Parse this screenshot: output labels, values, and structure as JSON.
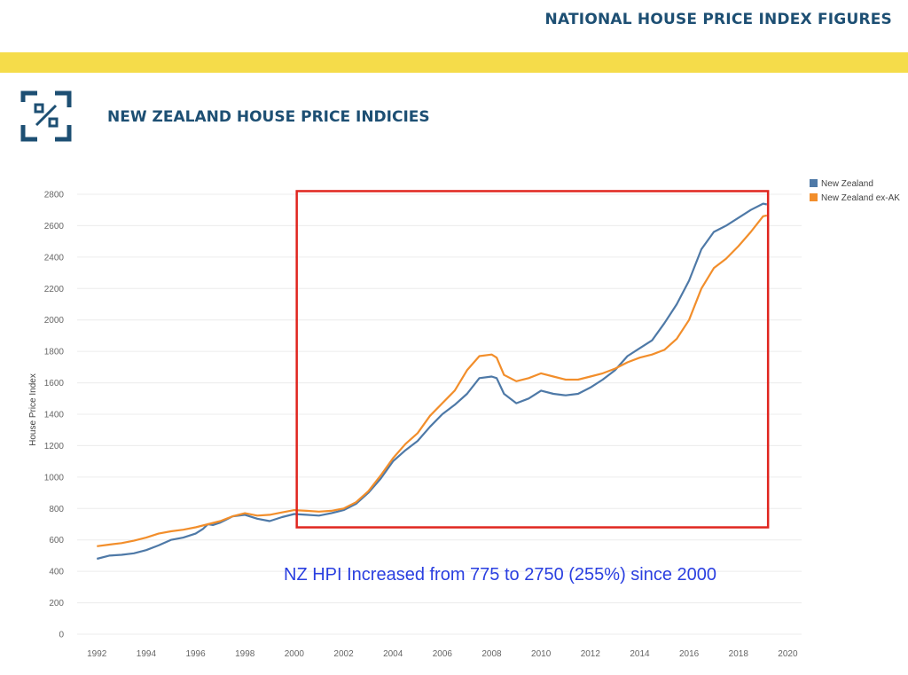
{
  "header": {
    "title": "NATIONAL HOUSE PRICE INDEX FIGURES"
  },
  "section": {
    "title": "NEW ZEALAND HOUSE PRICE INDICIES",
    "icon": "percent-square-icon"
  },
  "colors": {
    "brand": "#1d4f73",
    "band": "#f5dc4a",
    "highlight": "#e0261f",
    "annotation": "#2a3fe0"
  },
  "chart_data": {
    "type": "line",
    "ylabel": "House Price Index",
    "xlabel": "",
    "xlim": [
      1991.2,
      2020.2
    ],
    "ylim": [
      0,
      2800
    ],
    "yticks": [
      0,
      200,
      400,
      600,
      800,
      1000,
      1200,
      1400,
      1600,
      1800,
      2000,
      2200,
      2400,
      2600,
      2800
    ],
    "xticks": [
      1992,
      1994,
      1996,
      1998,
      2000,
      2002,
      2004,
      2006,
      2008,
      2010,
      2012,
      2014,
      2016,
      2018,
      2020
    ],
    "grid": true,
    "legend_position": "top-right",
    "series": [
      {
        "name": "New Zealand",
        "color": "#4e79a7",
        "points": [
          [
            1992.0,
            480
          ],
          [
            1992.5,
            500
          ],
          [
            1993.0,
            505
          ],
          [
            1993.5,
            515
          ],
          [
            1994.0,
            535
          ],
          [
            1994.5,
            565
          ],
          [
            1995.0,
            600
          ],
          [
            1995.5,
            615
          ],
          [
            1996.0,
            640
          ],
          [
            1996.3,
            670
          ],
          [
            1996.5,
            700
          ],
          [
            1996.7,
            695
          ],
          [
            1997.0,
            710
          ],
          [
            1997.5,
            750
          ],
          [
            1998.0,
            760
          ],
          [
            1998.5,
            735
          ],
          [
            1999.0,
            720
          ],
          [
            1999.5,
            745
          ],
          [
            2000.0,
            765
          ],
          [
            2000.5,
            760
          ],
          [
            2001.0,
            755
          ],
          [
            2001.5,
            770
          ],
          [
            2002.0,
            790
          ],
          [
            2002.5,
            830
          ],
          [
            2003.0,
            900
          ],
          [
            2003.5,
            990
          ],
          [
            2004.0,
            1100
          ],
          [
            2004.5,
            1170
          ],
          [
            2005.0,
            1230
          ],
          [
            2005.5,
            1320
          ],
          [
            2006.0,
            1400
          ],
          [
            2006.5,
            1460
          ],
          [
            2007.0,
            1530
          ],
          [
            2007.5,
            1630
          ],
          [
            2008.0,
            1640
          ],
          [
            2008.2,
            1630
          ],
          [
            2008.5,
            1530
          ],
          [
            2009.0,
            1470
          ],
          [
            2009.5,
            1500
          ],
          [
            2010.0,
            1550
          ],
          [
            2010.5,
            1530
          ],
          [
            2011.0,
            1520
          ],
          [
            2011.5,
            1530
          ],
          [
            2012.0,
            1570
          ],
          [
            2012.5,
            1620
          ],
          [
            2013.0,
            1680
          ],
          [
            2013.5,
            1770
          ],
          [
            2014.0,
            1820
          ],
          [
            2014.5,
            1870
          ],
          [
            2015.0,
            1980
          ],
          [
            2015.5,
            2100
          ],
          [
            2016.0,
            2250
          ],
          [
            2016.5,
            2450
          ],
          [
            2017.0,
            2560
          ],
          [
            2017.5,
            2600
          ],
          [
            2018.0,
            2650
          ],
          [
            2018.5,
            2700
          ],
          [
            2019.0,
            2740
          ],
          [
            2019.15,
            2735
          ]
        ]
      },
      {
        "name": "New Zealand ex-AK",
        "color": "#f28e2b",
        "points": [
          [
            1992.0,
            560
          ],
          [
            1992.5,
            570
          ],
          [
            1993.0,
            580
          ],
          [
            1993.5,
            595
          ],
          [
            1994.0,
            615
          ],
          [
            1994.5,
            640
          ],
          [
            1995.0,
            655
          ],
          [
            1995.5,
            665
          ],
          [
            1996.0,
            680
          ],
          [
            1996.5,
            700
          ],
          [
            1997.0,
            720
          ],
          [
            1997.5,
            750
          ],
          [
            1998.0,
            770
          ],
          [
            1998.5,
            755
          ],
          [
            1999.0,
            760
          ],
          [
            1999.5,
            775
          ],
          [
            2000.0,
            790
          ],
          [
            2000.5,
            785
          ],
          [
            2001.0,
            780
          ],
          [
            2001.5,
            785
          ],
          [
            2002.0,
            800
          ],
          [
            2002.5,
            840
          ],
          [
            2003.0,
            910
          ],
          [
            2003.5,
            1010
          ],
          [
            2004.0,
            1120
          ],
          [
            2004.5,
            1210
          ],
          [
            2005.0,
            1280
          ],
          [
            2005.5,
            1390
          ],
          [
            2006.0,
            1470
          ],
          [
            2006.5,
            1550
          ],
          [
            2007.0,
            1680
          ],
          [
            2007.5,
            1770
          ],
          [
            2008.0,
            1780
          ],
          [
            2008.2,
            1760
          ],
          [
            2008.5,
            1650
          ],
          [
            2009.0,
            1610
          ],
          [
            2009.5,
            1630
          ],
          [
            2010.0,
            1660
          ],
          [
            2010.5,
            1640
          ],
          [
            2011.0,
            1620
          ],
          [
            2011.5,
            1620
          ],
          [
            2012.0,
            1640
          ],
          [
            2012.5,
            1660
          ],
          [
            2013.0,
            1690
          ],
          [
            2013.5,
            1730
          ],
          [
            2014.0,
            1760
          ],
          [
            2014.5,
            1780
          ],
          [
            2015.0,
            1810
          ],
          [
            2015.5,
            1880
          ],
          [
            2016.0,
            2000
          ],
          [
            2016.5,
            2200
          ],
          [
            2017.0,
            2330
          ],
          [
            2017.5,
            2390
          ],
          [
            2018.0,
            2470
          ],
          [
            2018.5,
            2560
          ],
          [
            2019.0,
            2660
          ],
          [
            2019.15,
            2665
          ]
        ]
      }
    ],
    "annotations": [
      {
        "type": "box",
        "x_range": [
          2000.1,
          2019.2
        ],
        "y_range": [
          680,
          2820
        ],
        "color": "#e0261f"
      },
      {
        "type": "text",
        "text": "NZ HPI Increased from 775 to 2750 (255%) since 2000"
      }
    ]
  }
}
